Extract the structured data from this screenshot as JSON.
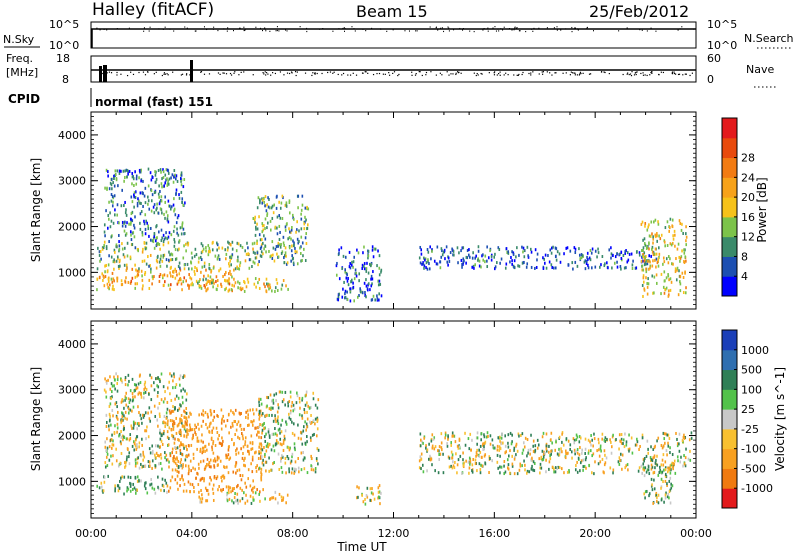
{
  "header": {
    "title": "Halley (fitACF)",
    "beam": "Beam 15",
    "date": "25/Feb/2012"
  },
  "strips": {
    "nsky": {
      "label": "N.Sky",
      "ticks": [
        "10^5",
        "10^0"
      ],
      "right_label": "N.Search",
      "right_ticks": [
        "10^5",
        "10^0"
      ]
    },
    "freq": {
      "label_line1": "Freq.",
      "label_line2": "[MHz]",
      "ticks": [
        "18",
        "8"
      ],
      "right_label": "Nave",
      "right_ticks": [
        "60",
        "0"
      ]
    },
    "cpid": {
      "label": "CPID",
      "mode_text": "normal (fast) 151"
    }
  },
  "chart_data": [
    {
      "type": "heatmap",
      "panel": "power",
      "title": "",
      "ylabel": "Slant Range [km]",
      "xlabel": "Time UT",
      "x_range_hours": [
        0,
        24
      ],
      "ylim_km": [
        200,
        4500
      ],
      "yticks": [
        "1000",
        "2000",
        "3000",
        "4000"
      ],
      "colorbar": {
        "label": "Power [dB]",
        "ticks": [
          "4",
          "8",
          "12",
          "16",
          "20",
          "24",
          "28"
        ],
        "colors": [
          "#0000ff",
          "#1c4fb2",
          "#3a8a6a",
          "#7cc34a",
          "#f6c21a",
          "#f7a21a",
          "#f27b12",
          "#e84a0c",
          "#e31a1c"
        ]
      },
      "features": [
        {
          "description_ref": "scatter",
          "t_start": 0.2,
          "t_end": 5.8,
          "range_km": [
            650,
            1100
          ],
          "value_db": 22
        },
        {
          "description_ref": "scatter",
          "t_start": 0.2,
          "t_end": 6.6,
          "range_km": [
            1100,
            1700
          ],
          "value_db": 14
        },
        {
          "description_ref": "scatter",
          "t_start": 0.5,
          "t_end": 3.7,
          "range_km": [
            1700,
            3300
          ],
          "value_db": 9
        },
        {
          "description_ref": "scatter",
          "t_start": 4.2,
          "t_end": 7.8,
          "range_km": [
            600,
            900
          ],
          "value_db": 18
        },
        {
          "description_ref": "scatter",
          "t_start": 6.4,
          "t_end": 8.6,
          "range_km": [
            1200,
            2700
          ],
          "value_db": 11
        },
        {
          "description_ref": "scatter",
          "t_start": 9.7,
          "t_end": 11.5,
          "range_km": [
            400,
            1600
          ],
          "value_db": 7
        },
        {
          "description_ref": "scatter",
          "t_start": 13.0,
          "t_end": 22.5,
          "range_km": [
            1100,
            1600
          ],
          "value_db": 6
        },
        {
          "description_ref": "scatter",
          "t_start": 21.8,
          "t_end": 23.6,
          "range_km": [
            500,
            2200
          ],
          "value_db": 18
        }
      ]
    },
    {
      "type": "heatmap",
      "panel": "velocity",
      "title": "",
      "ylabel": "Slant Range [km]",
      "xlabel": "Time UT",
      "x_range_hours": [
        0,
        24
      ],
      "ylim_km": [
        200,
        4500
      ],
      "yticks": [
        "1000",
        "2000",
        "3000",
        "4000"
      ],
      "colorbar": {
        "label": "Velocity [m s^-1]",
        "ticks": [
          "1000",
          "500",
          "100",
          "25",
          "-25",
          "-100",
          "-500",
          "-1000"
        ],
        "colors": [
          "#1b3fb8",
          "#2f6fb0",
          "#2f7f56",
          "#53c24a",
          "#c8c8c8",
          "#f8c030",
          "#f8a020",
          "#f07a10",
          "#e31a1c"
        ]
      },
      "features": [
        {
          "description_ref": "scatter",
          "t_start": 0.2,
          "t_end": 3.0,
          "range_km": [
            750,
            1150
          ],
          "value_ms": 150
        },
        {
          "description_ref": "scatter",
          "t_start": 0.5,
          "t_end": 3.8,
          "range_km": [
            1300,
            3400
          ],
          "value_ms": 0
        },
        {
          "description_ref": "scatter",
          "t_start": 3.0,
          "t_end": 6.8,
          "range_km": [
            800,
            2600
          ],
          "value_ms": -400
        },
        {
          "description_ref": "scatter",
          "t_start": 4.2,
          "t_end": 7.8,
          "range_km": [
            550,
            800
          ],
          "value_ms": -100
        },
        {
          "description_ref": "scatter",
          "t_start": 6.6,
          "t_end": 9.0,
          "range_km": [
            1200,
            3000
          ],
          "value_ms": 0
        },
        {
          "description_ref": "scatter",
          "t_start": 10.5,
          "t_end": 11.5,
          "range_km": [
            500,
            950
          ],
          "value_ms": -100
        },
        {
          "description_ref": "scatter",
          "t_start": 13.0,
          "t_end": 23.8,
          "range_km": [
            1200,
            2100
          ],
          "value_ms": 0
        },
        {
          "description_ref": "scatter",
          "t_start": 21.9,
          "t_end": 23.1,
          "range_km": [
            550,
            1550
          ],
          "value_ms": 80
        }
      ]
    }
  ],
  "xaxis": {
    "ticks": [
      "00:00",
      "04:00",
      "08:00",
      "12:00",
      "16:00",
      "20:00",
      "00:00"
    ],
    "label": "Time UT"
  }
}
